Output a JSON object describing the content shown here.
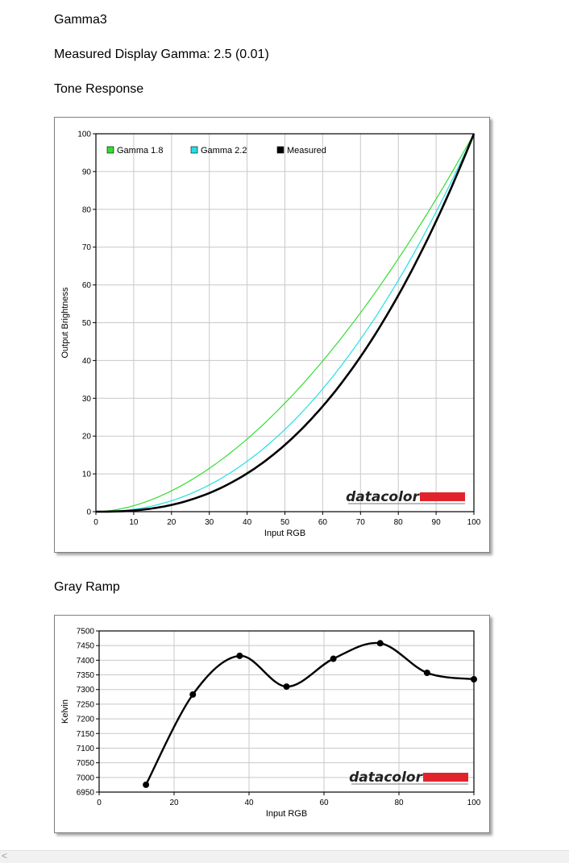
{
  "page": {
    "profile_name": "Gamma3",
    "measured_gamma": "Measured Display Gamma: 2.5 (0.01)"
  },
  "charts": {
    "tone": {
      "heading": "Tone Response",
      "logo_text": "datacolor"
    },
    "gray": {
      "heading": "Gray Ramp",
      "logo_text": "datacolor"
    }
  },
  "colors": {
    "gamma18": "#33dd33",
    "gamma22": "#22e0e6",
    "measured": "#000000",
    "grid": "#c8c8c8",
    "logo_bar": "#e1242c"
  },
  "scrollbar": {
    "left_glyph": "<"
  },
  "chart_data": [
    {
      "type": "line",
      "title": "Tone Response",
      "xlabel": "Input RGB",
      "ylabel": "Output Brightness",
      "xlim": [
        0,
        100
      ],
      "ylim": [
        0,
        100
      ],
      "xticks": [
        0,
        10,
        20,
        30,
        40,
        50,
        60,
        70,
        80,
        90,
        100
      ],
      "yticks": [
        0,
        10,
        20,
        30,
        40,
        50,
        60,
        70,
        80,
        90,
        100
      ],
      "grid": true,
      "legend_position": "top-left",
      "series": [
        {
          "name": "Gamma 1.8",
          "color": "#33dd33",
          "gamma": 1.8,
          "x": [
            0,
            10,
            20,
            30,
            40,
            50,
            60,
            70,
            80,
            90,
            100
          ],
          "y": [
            0,
            1.6,
            5.5,
            11.5,
            19.2,
            28.7,
            39.9,
            52.6,
            66.9,
            82.7,
            100
          ]
        },
        {
          "name": "Gamma 2.2",
          "color": "#22e0e6",
          "gamma": 2.2,
          "x": [
            0,
            10,
            20,
            30,
            40,
            50,
            60,
            70,
            80,
            90,
            100
          ],
          "y": [
            0,
            0.6,
            2.9,
            7.1,
            13.3,
            21.8,
            32.5,
            45.6,
            61.2,
            79.3,
            100
          ]
        },
        {
          "name": "Measured",
          "color": "#000000",
          "gamma": 2.5,
          "x": [
            0,
            10,
            20,
            30,
            40,
            50,
            60,
            70,
            80,
            90,
            100
          ],
          "y": [
            0,
            0.4,
            1.9,
            5.1,
            10.3,
            17.7,
            28.0,
            40.9,
            57.0,
            76.5,
            100
          ]
        }
      ]
    },
    {
      "type": "line",
      "title": "Gray Ramp",
      "xlabel": "Input RGB",
      "ylabel": "Kelvin",
      "xlim": [
        0,
        100
      ],
      "ylim": [
        6950,
        7500
      ],
      "xticks": [
        0,
        20,
        40,
        60,
        80,
        100
      ],
      "yticks": [
        6950,
        7000,
        7050,
        7100,
        7150,
        7200,
        7250,
        7300,
        7350,
        7400,
        7450,
        7500
      ],
      "grid": true,
      "series": [
        {
          "color": "#000000",
          "x": [
            12.5,
            25,
            37.5,
            50,
            62.5,
            75,
            87.5,
            100
          ],
          "y": [
            6975,
            7283,
            7415,
            7310,
            7405,
            7458,
            7357,
            7335
          ]
        }
      ]
    }
  ]
}
